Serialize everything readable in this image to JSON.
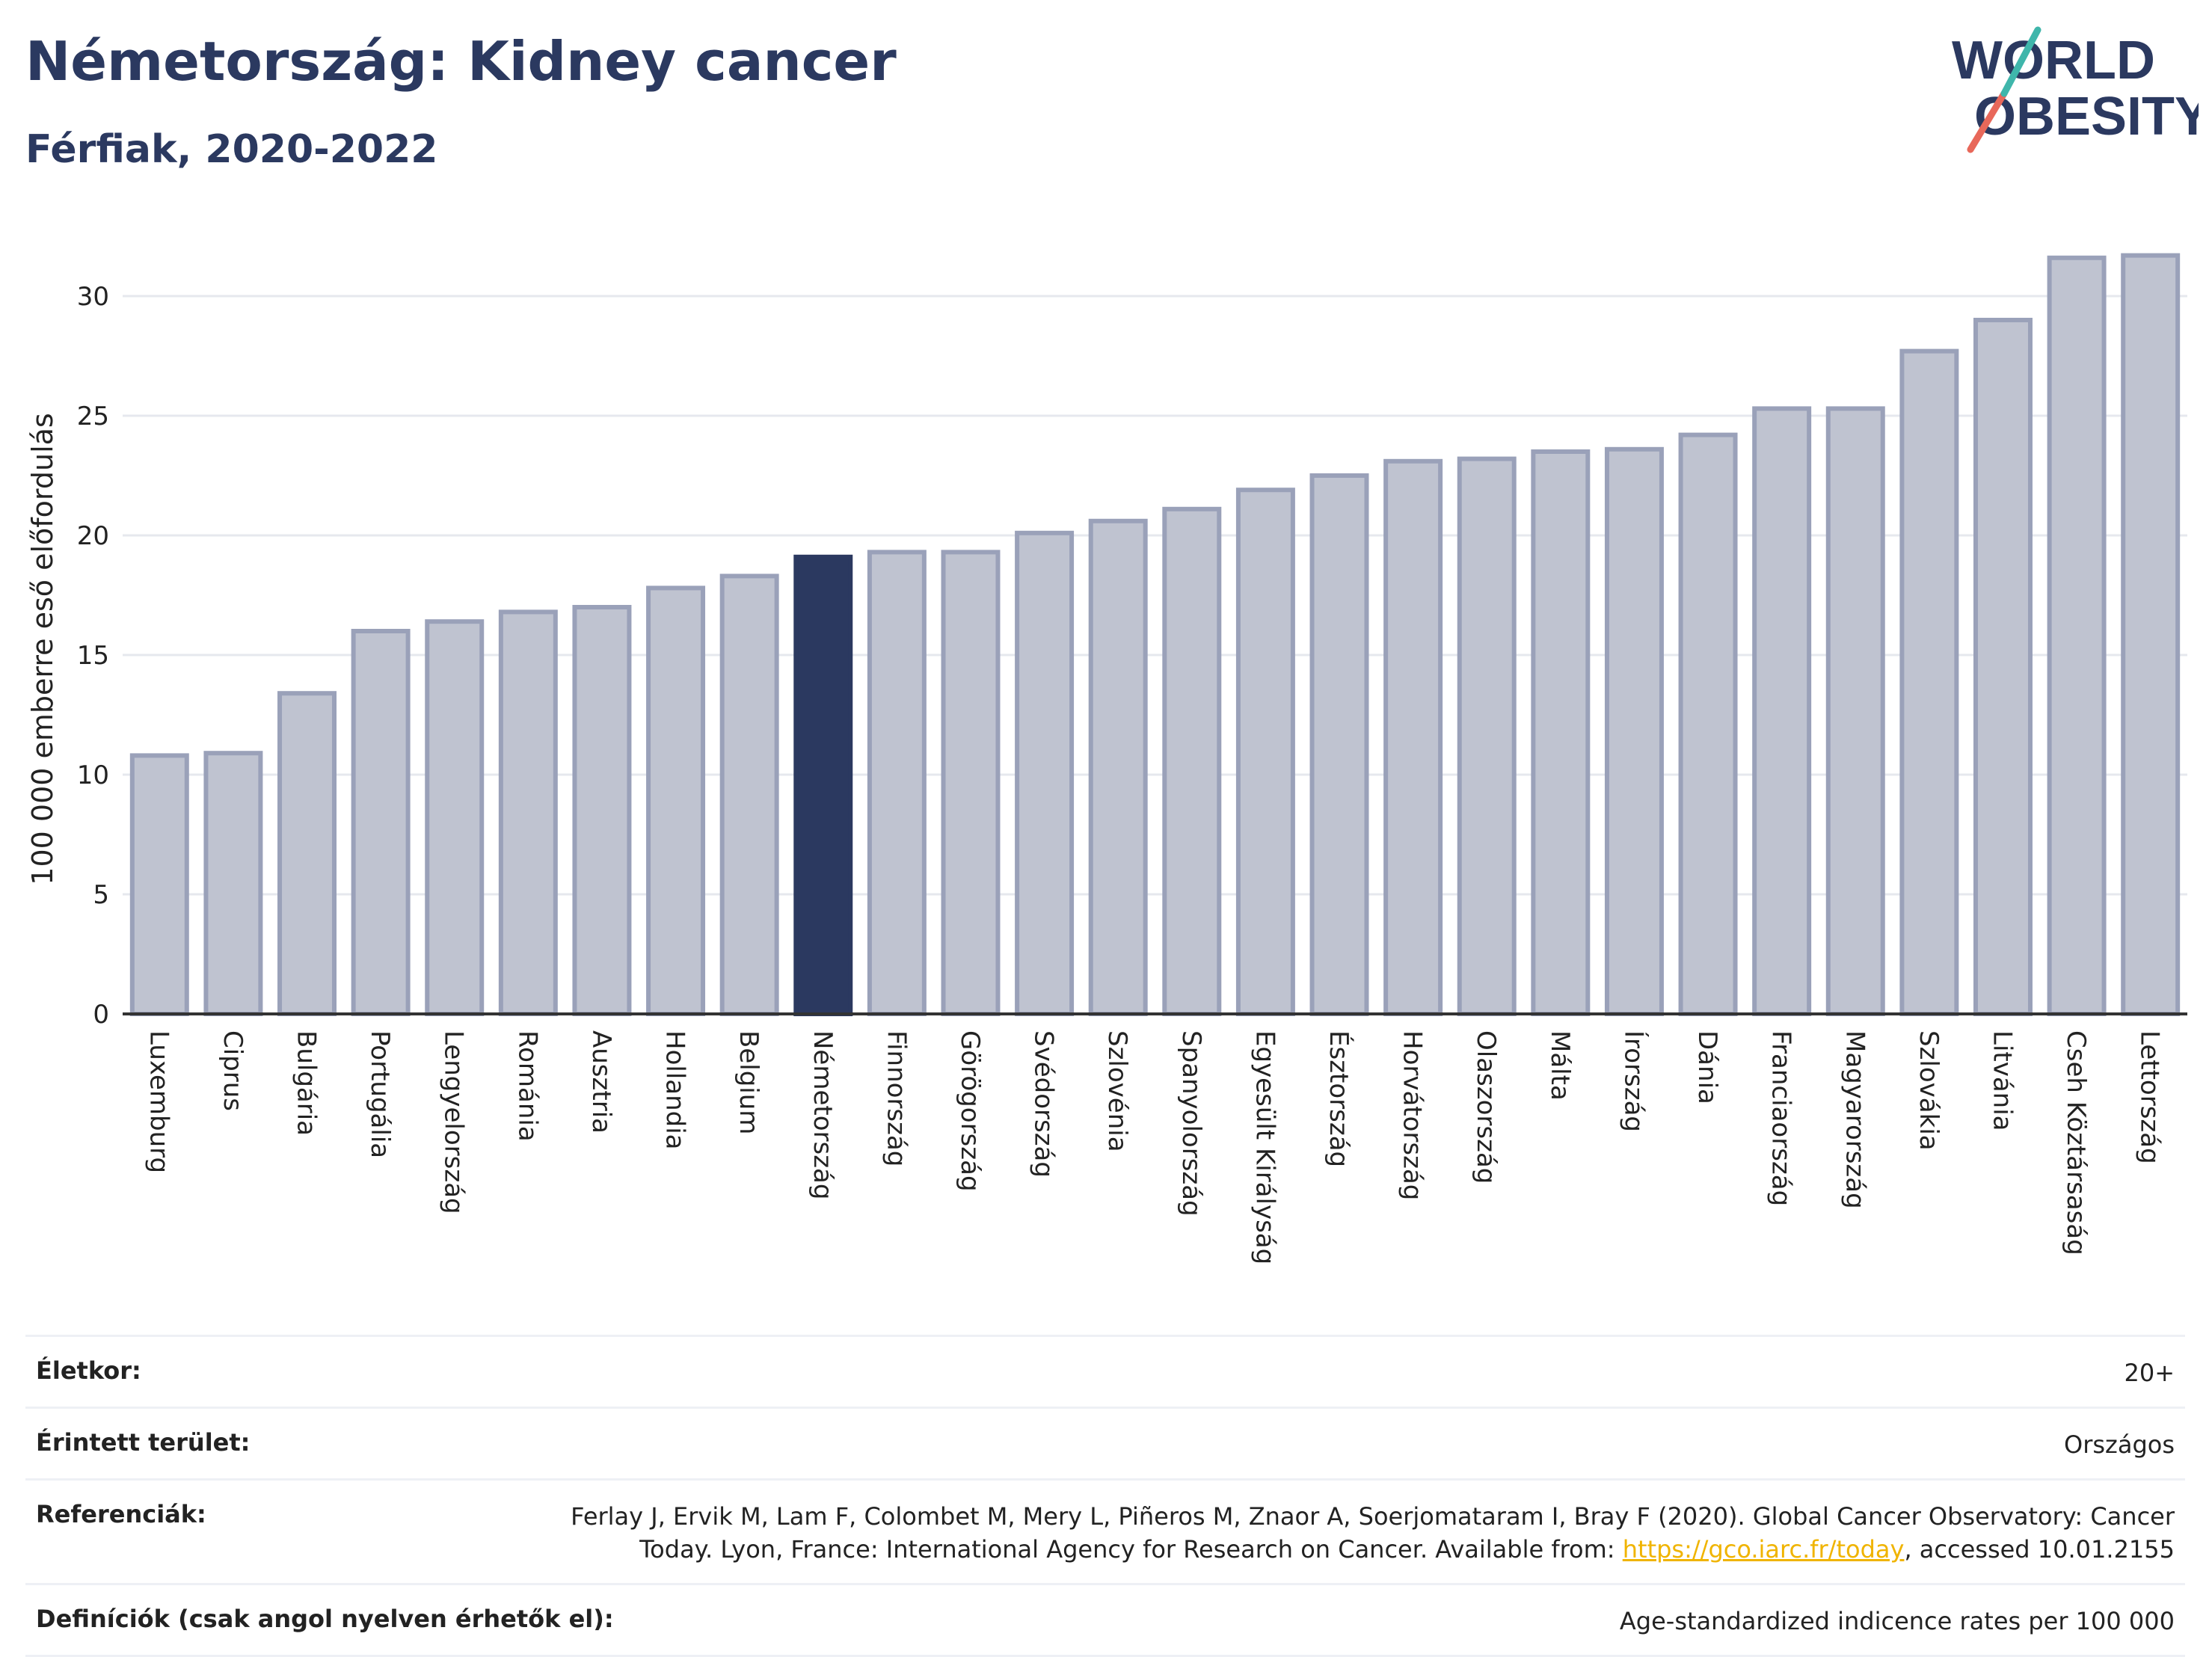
{
  "title": "Németország: Kidney cancer",
  "subtitle": "Férfiak, 2020-2022",
  "logo": {
    "line1": "WORLD",
    "line2": "OBESITY",
    "colors": {
      "text": "#2b3960",
      "slash_red": "#e8685a",
      "slash_teal": "#3fb6ab"
    }
  },
  "colors": {
    "bar": "#bfc3d0",
    "bar_stroke": "#9aa1b9",
    "highlight": "#2b3960",
    "grid": "#e6e8ee",
    "axis": "#333333"
  },
  "chart_data": {
    "type": "bar",
    "ylabel": "100 000 emberre eső előfordulás",
    "ylim": [
      0,
      33
    ],
    "yticks": [
      0,
      5,
      10,
      15,
      20,
      25,
      30
    ],
    "highlight": "Németország",
    "categories": [
      "Luxemburg",
      "Ciprus",
      "Bulgária",
      "Portugália",
      "Lengyelország",
      "Románia",
      "Ausztria",
      "Hollandia",
      "Belgium",
      "Németország",
      "Finnország",
      "Görögország",
      "Svédország",
      "Szlovénia",
      "Spanyolország",
      "Egyesült Királyság",
      "Észtország",
      "Horvátország",
      "Olaszország",
      "Málta",
      "Írország",
      "Dánia",
      "Franciaország",
      "Magyarország",
      "Szlovákia",
      "Litvánia",
      "Cseh Köztársaság",
      "Lettország"
    ],
    "values": [
      10.8,
      10.9,
      13.4,
      16.0,
      16.4,
      16.8,
      17.0,
      17.8,
      18.3,
      19.1,
      19.3,
      19.3,
      20.1,
      20.6,
      21.1,
      21.9,
      22.5,
      23.1,
      23.2,
      23.5,
      23.6,
      24.2,
      25.3,
      25.3,
      27.7,
      29.0,
      31.6,
      31.7
    ]
  },
  "meta": {
    "age_label": "Életkor:",
    "age_value": "20+",
    "area_label": "Érintett terület:",
    "area_value": "Országos",
    "ref_label": "Referenciák:",
    "ref_text_1": "Ferlay J, Ervik M, Lam F, Colombet M, Mery L, Piñeros M, Znaor A, Soerjomataram I, Bray F (2020). Global Cancer Observatory: Cancer",
    "ref_text_2": "Today. Lyon, France: International Agency for Research on Cancer. Available from: ",
    "ref_link": "https://gco.iarc.fr/today",
    "ref_text_3": ", accessed 10.01.2155",
    "def_label": "Definíciók (csak angol nyelven érhetők el):",
    "def_value": "Age-standardized indicence rates per 100 000"
  }
}
